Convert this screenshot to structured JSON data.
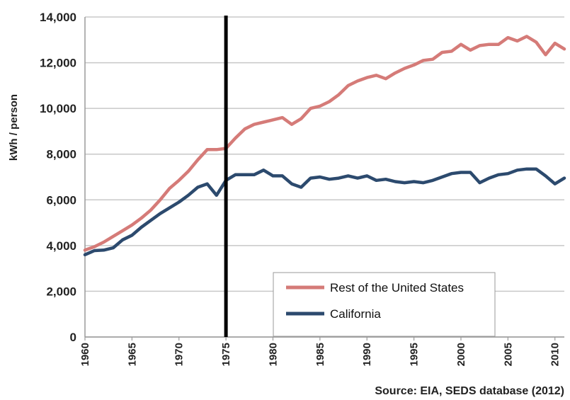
{
  "chart_data": {
    "type": "line",
    "ylabel": "kWh / person",
    "ylim": [
      0,
      14000
    ],
    "y_ticks": [
      "0",
      "2,000",
      "4,000",
      "6,000",
      "8,000",
      "10,000",
      "12,000",
      "14,000"
    ],
    "xlim": [
      1960,
      2011
    ],
    "x_ticks": [
      "1960",
      "1965",
      "1970",
      "1975",
      "1980",
      "1985",
      "1990",
      "1995",
      "2000",
      "2005",
      "2010"
    ],
    "grid": "horizontal",
    "legend_position": "bottom-right",
    "reference_line_x": 1975,
    "source": "Source: EIA, SEDS database (2012)",
    "x": [
      1960,
      1961,
      1962,
      1963,
      1964,
      1965,
      1966,
      1967,
      1968,
      1969,
      1970,
      1971,
      1972,
      1973,
      1974,
      1975,
      1976,
      1977,
      1978,
      1979,
      1980,
      1981,
      1982,
      1983,
      1984,
      1985,
      1986,
      1987,
      1988,
      1989,
      1990,
      1991,
      1992,
      1993,
      1994,
      1995,
      1996,
      1997,
      1998,
      1999,
      2000,
      2001,
      2002,
      2003,
      2004,
      2005,
      2006,
      2007,
      2008,
      2009,
      2010,
      2011
    ],
    "series": [
      {
        "name": "Rest of the United States",
        "color": "#d57b78",
        "values": [
          3800,
          3950,
          4150,
          4400,
          4650,
          4900,
          5200,
          5550,
          6000,
          6500,
          6850,
          7250,
          7750,
          8200,
          8200,
          8250,
          8700,
          9100,
          9300,
          9400,
          9500,
          9600,
          9300,
          9550,
          10000,
          10100,
          10300,
          10600,
          11000,
          11200,
          11350,
          11450,
          11300,
          11550,
          11750,
          11900,
          12100,
          12150,
          12450,
          12500,
          12800,
          12550,
          12750,
          12800,
          12800,
          13100,
          12950,
          13150,
          12900,
          12350,
          12850,
          12600
        ]
      },
      {
        "name": "California",
        "color": "#2c4a6e",
        "values": [
          3600,
          3780,
          3800,
          3900,
          4250,
          4450,
          4800,
          5100,
          5400,
          5650,
          5900,
          6200,
          6550,
          6700,
          6200,
          6850,
          7100,
          7100,
          7100,
          7300,
          7050,
          7050,
          6700,
          6550,
          6950,
          7000,
          6900,
          6950,
          7050,
          6950,
          7050,
          6850,
          6900,
          6800,
          6750,
          6800,
          6750,
          6850,
          7000,
          7150,
          7200,
          7200,
          6750,
          6950,
          7100,
          7150,
          7300,
          7350,
          7350,
          7050,
          6700,
          6950
        ]
      }
    ]
  }
}
